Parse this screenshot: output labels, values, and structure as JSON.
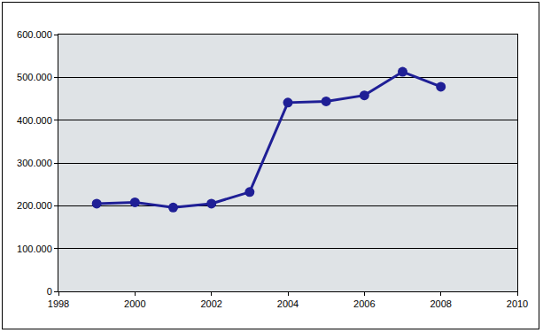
{
  "chart_data": {
    "type": "line",
    "x": [
      1999,
      2000,
      2001,
      2002,
      2003,
      2004,
      2005,
      2006,
      2007,
      2008
    ],
    "values": [
      205000,
      208000,
      196000,
      205000,
      232000,
      441000,
      444000,
      458000,
      513000,
      478000
    ],
    "color": "#1f1f96",
    "marker": "circle",
    "line_style": "solid",
    "xlim": [
      1998,
      2010
    ],
    "xticks": [
      1998,
      2000,
      2002,
      2004,
      2006,
      2008,
      2010
    ],
    "ylim": [
      0,
      600000
    ],
    "yticks": [
      0,
      {
        "value": 100000,
        "label": "100.000"
      },
      {
        "value": 200000,
        "label": "200.000"
      },
      {
        "value": 300000,
        "label": "300.000"
      },
      {
        "value": 400000,
        "label": "400.000"
      },
      {
        "value": 500000,
        "label": "500.000"
      },
      {
        "value": 600000,
        "label": "600.000"
      }
    ],
    "grid": true
  }
}
